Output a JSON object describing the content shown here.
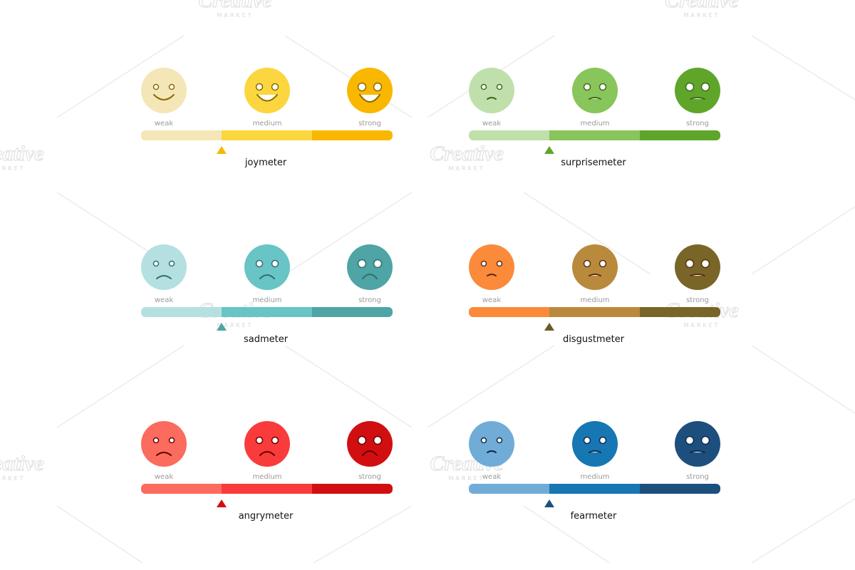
{
  "meters": [
    {
      "title": "joymeter",
      "levels": [
        "weak",
        "medium",
        "strong"
      ]
    },
    {
      "title": "surprisemeter",
      "levels": [
        "weak",
        "medium",
        "strong"
      ]
    },
    {
      "title": "sadmeter",
      "levels": [
        "weak",
        "medium",
        "strong"
      ]
    },
    {
      "title": "disgustmeter",
      "levels": [
        "weak",
        "medium",
        "strong"
      ]
    },
    {
      "title": "angrymeter",
      "levels": [
        "weak",
        "medium",
        "strong"
      ]
    },
    {
      "title": "fearmeter",
      "levels": [
        "weak",
        "medium",
        "strong"
      ]
    }
  ],
  "watermark": {
    "brand": "Creative",
    "sub": "MARKET"
  }
}
